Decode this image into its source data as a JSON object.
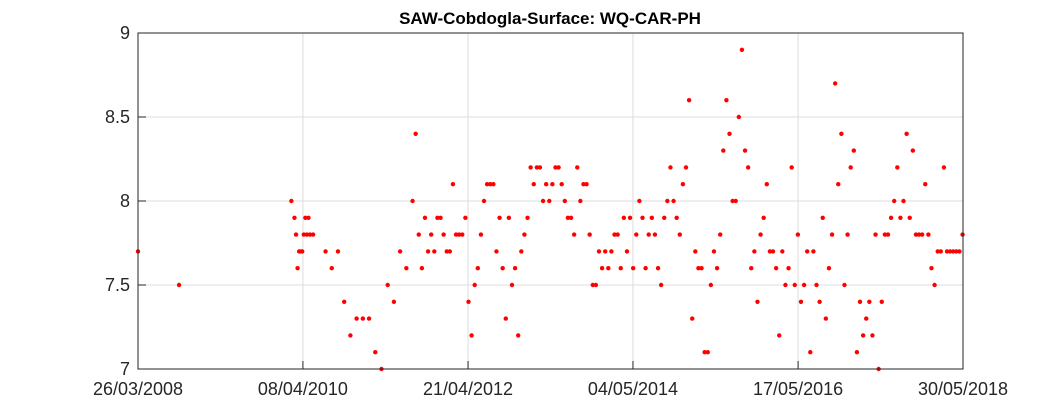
{
  "chart_data": {
    "type": "scatter",
    "title": "SAW-Cobdogla-Surface: WQ-CAR-PH",
    "xlabel": "",
    "ylabel": "",
    "xlim": [
      "26/03/2008",
      "30/05/2018"
    ],
    "ylim": [
      7,
      9
    ],
    "grid": true,
    "marker_color": "#ff0000",
    "x_ticks": [
      "26/03/2008",
      "08/04/2010",
      "21/04/2012",
      "04/05/2014",
      "17/05/2016",
      "30/05/2018"
    ],
    "y_ticks": [
      "7",
      "7.5",
      "8",
      "8.5",
      "9"
    ],
    "points": [
      [
        "26/03/2008",
        7.7
      ],
      [
        "27/09/2008",
        7.5
      ],
      [
        "15/02/2010",
        8.0
      ],
      [
        "01/03/2010",
        7.9
      ],
      [
        "08/03/2010",
        7.8
      ],
      [
        "15/03/2010",
        7.6
      ],
      [
        "22/03/2010",
        7.7
      ],
      [
        "29/03/2010",
        7.7
      ],
      [
        "05/04/2010",
        7.7
      ],
      [
        "12/04/2010",
        7.8
      ],
      [
        "19/04/2010",
        7.9
      ],
      [
        "26/04/2010",
        7.8
      ],
      [
        "03/05/2010",
        7.9
      ],
      [
        "10/05/2010",
        7.8
      ],
      [
        "24/05/2010",
        7.8
      ],
      [
        "19/07/2010",
        7.7
      ],
      [
        "16/08/2010",
        7.6
      ],
      [
        "13/09/2010",
        7.7
      ],
      [
        "11/10/2010",
        7.4
      ],
      [
        "08/11/2010",
        7.2
      ],
      [
        "06/12/2010",
        7.3
      ],
      [
        "03/01/2011",
        7.3
      ],
      [
        "31/01/2011",
        7.3
      ],
      [
        "28/02/2011",
        7.1
      ],
      [
        "28/03/2011",
        7.0
      ],
      [
        "25/04/2011",
        7.5
      ],
      [
        "23/05/2011",
        7.4
      ],
      [
        "20/06/2011",
        7.7
      ],
      [
        "18/07/2011",
        7.6
      ],
      [
        "15/08/2011",
        8.0
      ],
      [
        "29/08/2011",
        8.4
      ],
      [
        "12/09/2011",
        7.8
      ],
      [
        "26/09/2011",
        7.6
      ],
      [
        "10/10/2011",
        7.9
      ],
      [
        "24/10/2011",
        7.7
      ],
      [
        "07/11/2011",
        7.8
      ],
      [
        "21/11/2011",
        7.7
      ],
      [
        "05/12/2011",
        7.9
      ],
      [
        "19/12/2011",
        7.9
      ],
      [
        "02/01/2012",
        7.8
      ],
      [
        "16/01/2012",
        7.7
      ],
      [
        "30/01/2012",
        7.7
      ],
      [
        "13/02/2012",
        8.1
      ],
      [
        "27/02/2012",
        7.8
      ],
      [
        "12/03/2012",
        7.8
      ],
      [
        "26/03/2012",
        7.8
      ],
      [
        "09/04/2012",
        7.9
      ],
      [
        "23/04/2012",
        7.4
      ],
      [
        "07/05/2012",
        7.2
      ],
      [
        "21/05/2012",
        7.5
      ],
      [
        "04/06/2012",
        7.6
      ],
      [
        "18/06/2012",
        7.8
      ],
      [
        "02/07/2012",
        8.0
      ],
      [
        "16/07/2012",
        8.1
      ],
      [
        "30/07/2012",
        8.1
      ],
      [
        "13/08/2012",
        8.1
      ],
      [
        "27/08/2012",
        7.7
      ],
      [
        "10/09/2012",
        7.9
      ],
      [
        "24/09/2012",
        7.6
      ],
      [
        "08/10/2012",
        7.3
      ],
      [
        "22/10/2012",
        7.9
      ],
      [
        "05/11/2012",
        7.5
      ],
      [
        "19/11/2012",
        7.6
      ],
      [
        "03/12/2012",
        7.2
      ],
      [
        "17/12/2012",
        7.7
      ],
      [
        "31/12/2012",
        7.8
      ],
      [
        "14/01/2013",
        7.9
      ],
      [
        "28/01/2013",
        8.2
      ],
      [
        "11/02/2013",
        8.1
      ],
      [
        "25/02/2013",
        8.2
      ],
      [
        "11/03/2013",
        8.2
      ],
      [
        "25/03/2013",
        8.0
      ],
      [
        "08/04/2013",
        8.1
      ],
      [
        "22/04/2013",
        8.0
      ],
      [
        "06/05/2013",
        8.1
      ],
      [
        "20/05/2013",
        8.2
      ],
      [
        "03/06/2013",
        8.2
      ],
      [
        "17/06/2013",
        8.1
      ],
      [
        "01/07/2013",
        8.0
      ],
      [
        "15/07/2013",
        7.9
      ],
      [
        "29/07/2013",
        7.9
      ],
      [
        "12/08/2013",
        7.8
      ],
      [
        "26/08/2013",
        8.2
      ],
      [
        "09/09/2013",
        8.0
      ],
      [
        "23/09/2013",
        8.1
      ],
      [
        "07/10/2013",
        8.1
      ],
      [
        "21/10/2013",
        7.8
      ],
      [
        "04/11/2013",
        7.5
      ],
      [
        "18/11/2013",
        7.5
      ],
      [
        "02/12/2013",
        7.7
      ],
      [
        "16/12/2013",
        7.6
      ],
      [
        "30/12/2013",
        7.7
      ],
      [
        "13/01/2014",
        7.6
      ],
      [
        "27/01/2014",
        7.7
      ],
      [
        "10/02/2014",
        7.8
      ],
      [
        "24/02/2014",
        7.8
      ],
      [
        "10/03/2014",
        7.6
      ],
      [
        "24/03/2014",
        7.9
      ],
      [
        "07/04/2014",
        7.7
      ],
      [
        "21/04/2014",
        7.9
      ],
      [
        "05/05/2014",
        7.6
      ],
      [
        "19/05/2014",
        7.8
      ],
      [
        "02/06/2014",
        8.0
      ],
      [
        "16/06/2014",
        7.9
      ],
      [
        "30/06/2014",
        7.6
      ],
      [
        "14/07/2014",
        7.8
      ],
      [
        "28/07/2014",
        7.9
      ],
      [
        "11/08/2014",
        7.8
      ],
      [
        "25/08/2014",
        7.6
      ],
      [
        "08/09/2014",
        7.5
      ],
      [
        "22/09/2014",
        7.9
      ],
      [
        "06/10/2014",
        8.0
      ],
      [
        "20/10/2014",
        8.2
      ],
      [
        "03/11/2014",
        8.0
      ],
      [
        "17/11/2014",
        7.9
      ],
      [
        "01/12/2014",
        7.8
      ],
      [
        "15/12/2014",
        8.1
      ],
      [
        "29/12/2014",
        8.2
      ],
      [
        "12/01/2015",
        8.6
      ],
      [
        "26/01/2015",
        7.3
      ],
      [
        "09/02/2015",
        7.7
      ],
      [
        "23/02/2015",
        7.6
      ],
      [
        "09/03/2015",
        7.6
      ],
      [
        "23/03/2015",
        7.1
      ],
      [
        "06/04/2015",
        7.1
      ],
      [
        "20/04/2015",
        7.5
      ],
      [
        "04/05/2015",
        7.7
      ],
      [
        "18/05/2015",
        7.6
      ],
      [
        "01/06/2015",
        7.8
      ],
      [
        "15/06/2015",
        8.3
      ],
      [
        "29/06/2015",
        8.6
      ],
      [
        "13/07/2015",
        8.4
      ],
      [
        "27/07/2015",
        8.0
      ],
      [
        "10/08/2015",
        8.0
      ],
      [
        "24/08/2015",
        8.5
      ],
      [
        "07/09/2015",
        8.9
      ],
      [
        "21/09/2015",
        8.3
      ],
      [
        "05/10/2015",
        8.2
      ],
      [
        "19/10/2015",
        7.6
      ],
      [
        "02/11/2015",
        7.7
      ],
      [
        "16/11/2015",
        7.4
      ],
      [
        "30/11/2015",
        7.8
      ],
      [
        "14/12/2015",
        7.9
      ],
      [
        "28/12/2015",
        8.1
      ],
      [
        "11/01/2016",
        7.7
      ],
      [
        "25/01/2016",
        7.7
      ],
      [
        "08/02/2016",
        7.6
      ],
      [
        "22/02/2016",
        7.2
      ],
      [
        "07/03/2016",
        7.7
      ],
      [
        "21/03/2016",
        7.5
      ],
      [
        "04/04/2016",
        7.6
      ],
      [
        "18/04/2016",
        8.2
      ],
      [
        "02/05/2016",
        7.5
      ],
      [
        "16/05/2016",
        7.8
      ],
      [
        "30/05/2016",
        7.4
      ],
      [
        "13/06/2016",
        7.5
      ],
      [
        "27/06/2016",
        7.7
      ],
      [
        "11/07/2016",
        7.1
      ],
      [
        "25/07/2016",
        7.7
      ],
      [
        "08/08/2016",
        7.5
      ],
      [
        "22/08/2016",
        7.4
      ],
      [
        "05/09/2016",
        7.9
      ],
      [
        "19/09/2016",
        7.3
      ],
      [
        "03/10/2016",
        7.6
      ],
      [
        "17/10/2016",
        7.8
      ],
      [
        "31/10/2016",
        8.7
      ],
      [
        "14/11/2016",
        8.1
      ],
      [
        "28/11/2016",
        8.4
      ],
      [
        "12/12/2016",
        7.5
      ],
      [
        "26/12/2016",
        7.8
      ],
      [
        "09/01/2017",
        8.2
      ],
      [
        "23/01/2017",
        8.3
      ],
      [
        "06/02/2017",
        7.1
      ],
      [
        "20/02/2017",
        7.4
      ],
      [
        "06/03/2017",
        7.2
      ],
      [
        "20/03/2017",
        7.3
      ],
      [
        "03/04/2017",
        7.4
      ],
      [
        "17/04/2017",
        7.2
      ],
      [
        "01/05/2017",
        7.8
      ],
      [
        "15/05/2017",
        7.0
      ],
      [
        "29/05/2017",
        7.4
      ],
      [
        "12/06/2017",
        7.8
      ],
      [
        "26/06/2017",
        7.8
      ],
      [
        "10/07/2017",
        7.9
      ],
      [
        "24/07/2017",
        8.0
      ],
      [
        "07/08/2017",
        8.2
      ],
      [
        "21/08/2017",
        7.9
      ],
      [
        "04/09/2017",
        8.0
      ],
      [
        "18/09/2017",
        8.4
      ],
      [
        "02/10/2017",
        7.9
      ],
      [
        "16/10/2017",
        8.3
      ],
      [
        "30/10/2017",
        7.8
      ],
      [
        "13/11/2017",
        7.8
      ],
      [
        "27/11/2017",
        7.8
      ],
      [
        "11/12/2017",
        8.1
      ],
      [
        "25/12/2017",
        7.8
      ],
      [
        "08/01/2018",
        7.6
      ],
      [
        "22/01/2018",
        7.5
      ],
      [
        "05/02/2018",
        7.7
      ],
      [
        "19/02/2018",
        7.7
      ],
      [
        "05/03/2018",
        8.2
      ],
      [
        "19/03/2018",
        7.7
      ],
      [
        "02/04/2018",
        7.7
      ],
      [
        "16/04/2018",
        7.7
      ],
      [
        "30/04/2018",
        7.7
      ],
      [
        "14/05/2018",
        7.7
      ],
      [
        "28/05/2018",
        7.8
      ]
    ]
  }
}
